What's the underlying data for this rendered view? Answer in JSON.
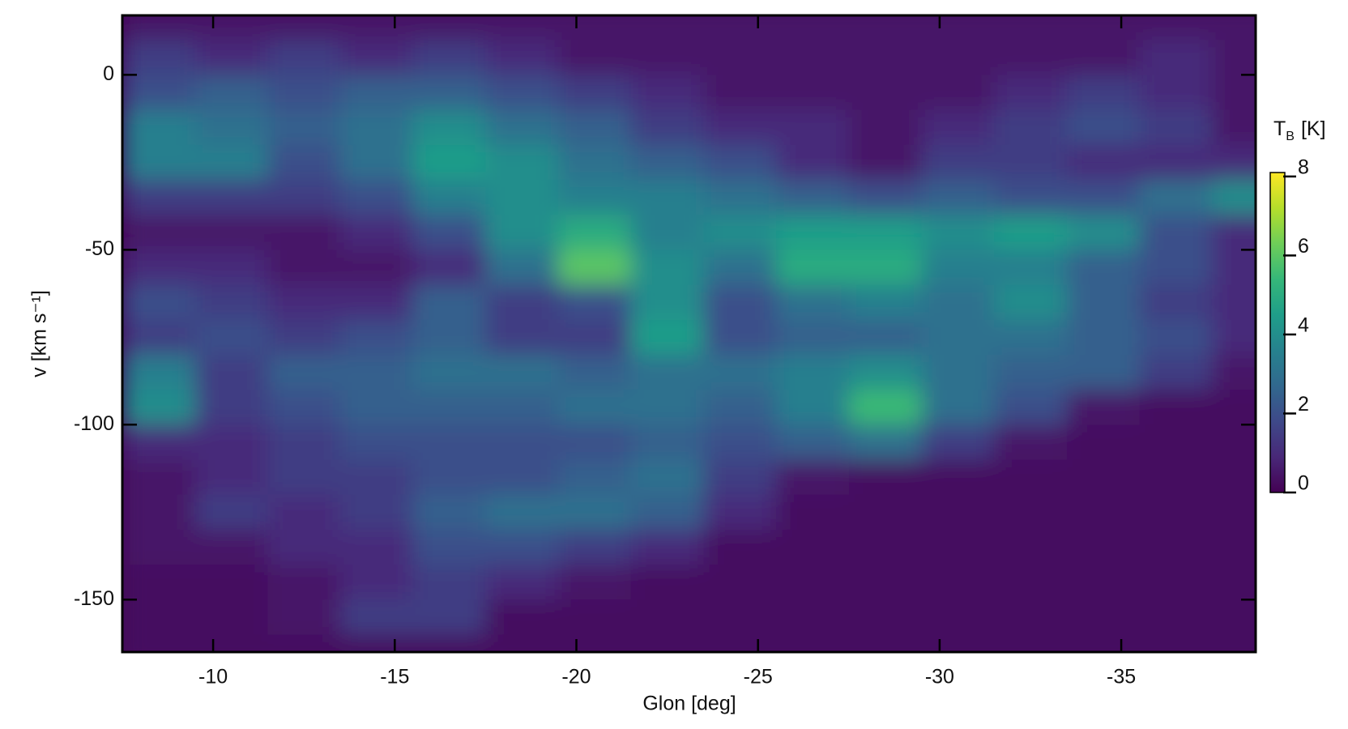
{
  "chart_data": {
    "type": "heatmap",
    "xlabel": "Glon [deg]",
    "ylabel": "v [km s⁻¹]",
    "colorbar_label": [
      "T",
      "B",
      "[K]"
    ],
    "xlim": [
      -7.5,
      -38.7
    ],
    "ylim": [
      -165,
      17
    ],
    "xticks": [
      -10,
      -15,
      -20,
      -25,
      -30,
      -35
    ],
    "yticks": [
      0,
      -50,
      -100,
      -150
    ],
    "clim": [
      0,
      8.1
    ],
    "cticks": [
      0,
      2,
      4,
      6,
      8
    ],
    "colors": [
      "#440154",
      "#482878",
      "#3e4989",
      "#31688e",
      "#26828e",
      "#1f9e89",
      "#35b779",
      "#6ece58",
      "#b5de2b",
      "#fde725"
    ],
    "xbins": [
      -7.5,
      -9.5,
      -11.5,
      -13.5,
      -15.5,
      -17.5,
      -19.5,
      -21.5,
      -23.5,
      -25.5,
      -27.5,
      -29.5,
      -31.5,
      -33.5,
      -35.5,
      -37.5,
      -39.5
    ],
    "ybins": [
      20,
      10,
      0,
      -10,
      -20,
      -30,
      -40,
      -50,
      -60,
      -70,
      -80,
      -90,
      -100,
      -110,
      -120,
      -130,
      -140,
      -150,
      -160,
      -170
    ],
    "z": [
      [
        0.5,
        0.5,
        0.5,
        0.5,
        0.5,
        0.5,
        0.5,
        0.5,
        0.5,
        0.5,
        0.5,
        0.5,
        0.5,
        0.5,
        0.5,
        0.5
      ],
      [
        1.5,
        1,
        1.5,
        1,
        1.5,
        1,
        0.5,
        0.5,
        0.5,
        0.5,
        0.5,
        0.5,
        0.5,
        0.5,
        1,
        0.5
      ],
      [
        2,
        2.5,
        2,
        2.5,
        2.5,
        2,
        1.5,
        1,
        0.5,
        0.5,
        0.5,
        0.5,
        1,
        1.5,
        1,
        0.5
      ],
      [
        3.5,
        3,
        2.5,
        3,
        4,
        3,
        2.5,
        1.5,
        1,
        1,
        0.5,
        1,
        1.5,
        2,
        1.5,
        0.5
      ],
      [
        3.5,
        3.5,
        2,
        3,
        4.5,
        4,
        3,
        2.5,
        2,
        1,
        0.5,
        1.5,
        1.5,
        1,
        1,
        1
      ],
      [
        1.5,
        1.5,
        1.5,
        2,
        3.5,
        4,
        3.5,
        3.5,
        3,
        2.5,
        2,
        2.5,
        2,
        2,
        3,
        4
      ],
      [
        0.5,
        0.5,
        0.5,
        1,
        2,
        4,
        5,
        3.5,
        4,
        4.5,
        4.5,
        4,
        4.5,
        4,
        2,
        1
      ],
      [
        1,
        1,
        0.5,
        0.5,
        1,
        3,
        6,
        4,
        3,
        5,
        5,
        3.5,
        3.5,
        2.5,
        2,
        1
      ],
      [
        2,
        1.5,
        1,
        1,
        2.5,
        1.5,
        2,
        4,
        2,
        3,
        3.5,
        3,
        4,
        2.5,
        1.5,
        1
      ],
      [
        1.5,
        2,
        1.5,
        2,
        2.5,
        1.5,
        1.5,
        4.5,
        2,
        2.5,
        2.5,
        3,
        3,
        2.5,
        2,
        1
      ],
      [
        3.5,
        1.5,
        2.5,
        2.5,
        3,
        3,
        2.5,
        3,
        3,
        3.5,
        4,
        3,
        2.5,
        2.5,
        1.5,
        0.5
      ],
      [
        4,
        1.5,
        2,
        2.5,
        2.5,
        2.5,
        3,
        3,
        2.5,
        3.5,
        5.5,
        3,
        2,
        0.5,
        0.3,
        0.3
      ],
      [
        1,
        1,
        1.5,
        2,
        2,
        2,
        2,
        2.5,
        2,
        2.5,
        3,
        1.5,
        0.5,
        0.3,
        0.3,
        0.3
      ],
      [
        0.5,
        1,
        1.5,
        1.5,
        2,
        2,
        2.5,
        3,
        1.5,
        0.5,
        0.3,
        0.3,
        0.3,
        0.3,
        0.3,
        0.3
      ],
      [
        0.5,
        1.5,
        1,
        1.5,
        2.5,
        3,
        3,
        2.5,
        1,
        0.3,
        0.3,
        0.3,
        0.3,
        0.3,
        0.3,
        0.3
      ],
      [
        0.5,
        0.5,
        1,
        1,
        2,
        2,
        1.5,
        1,
        0.3,
        0.3,
        0.3,
        0.3,
        0.3,
        0.3,
        0.3,
        0.3
      ],
      [
        0.3,
        0.3,
        0.5,
        1,
        1.5,
        1,
        0.5,
        0.3,
        0.3,
        0.3,
        0.3,
        0.3,
        0.3,
        0.3,
        0.3,
        0.3
      ],
      [
        0.3,
        0.3,
        0.5,
        1.5,
        1.5,
        0.3,
        0.3,
        0.3,
        0.3,
        0.3,
        0.3,
        0.3,
        0.3,
        0.3,
        0.3,
        0.3
      ],
      [
        0.3,
        0.3,
        0.3,
        0.3,
        0.3,
        0.3,
        0.3,
        0.3,
        0.3,
        0.3,
        0.3,
        0.3,
        0.3,
        0.3,
        0.3,
        0.3
      ]
    ]
  }
}
